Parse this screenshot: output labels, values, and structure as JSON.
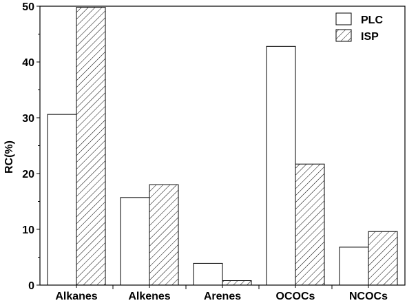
{
  "chart_data": {
    "type": "bar",
    "categories": [
      "Alkanes",
      "Alkenes",
      "Arenes",
      "OCOCs",
      "NCOCs"
    ],
    "series": [
      {
        "name": "PLC",
        "values": [
          30.6,
          15.7,
          3.9,
          42.8,
          6.8
        ],
        "fill": "#ffffff",
        "pattern": "none"
      },
      {
        "name": "ISP",
        "values": [
          49.8,
          18.0,
          0.8,
          21.7,
          9.6
        ],
        "fill": "#ffffff",
        "pattern": "diagonal-hatch"
      }
    ],
    "title": "",
    "xlabel": "",
    "ylabel": "RC(%)",
    "ylim": [
      0,
      50
    ],
    "yticks": [
      0,
      10,
      20,
      30,
      40,
      50
    ],
    "grid": false,
    "legend_position": "top-right",
    "colors": {
      "stroke": "#000000",
      "background": "#ffffff"
    }
  }
}
